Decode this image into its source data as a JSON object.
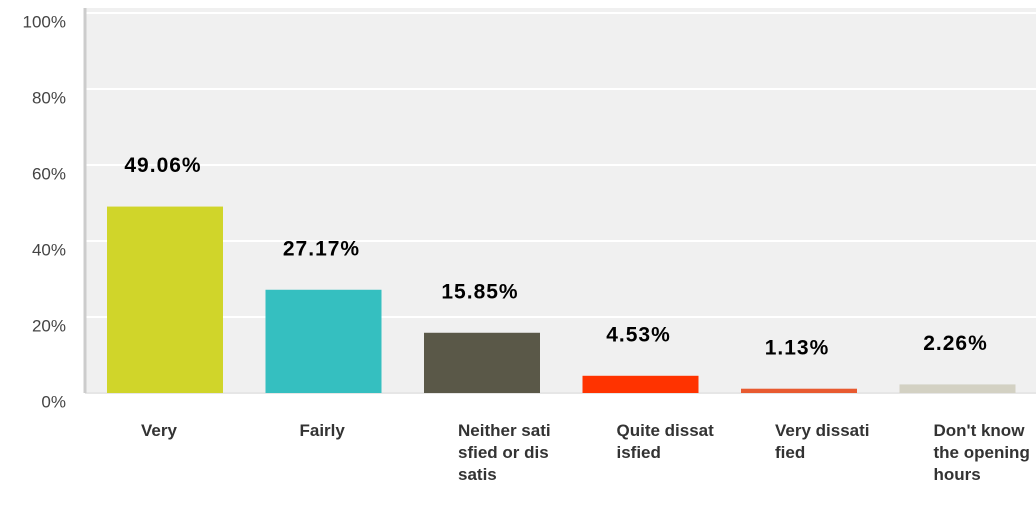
{
  "chart_data": {
    "type": "bar",
    "categories": [
      "Very",
      "Fairly",
      "Neither satisfied or dissatis",
      "Quite dissatisfied",
      "Very dissatified",
      "Don't know the opening hours"
    ],
    "values": [
      49.06,
      27.17,
      15.85,
      4.53,
      1.13,
      2.26
    ],
    "value_labels": [
      "49.06%",
      "27.17%",
      "15.85%",
      "4.53%",
      "1.13%",
      "2.26%"
    ],
    "colors": [
      "#d0d52a",
      "#35bfc0",
      "#5a5848",
      "#ff3300",
      "#e85a30",
      "#d3d1c3"
    ],
    "ylim": [
      0,
      100
    ],
    "yticks": [
      {
        "value": 0,
        "label": "0%"
      },
      {
        "value": 20,
        "label": "20%"
      },
      {
        "value": 40,
        "label": "40%"
      },
      {
        "value": 60,
        "label": "60%"
      },
      {
        "value": 80,
        "label": "80%"
      },
      {
        "value": 100,
        "label": "100%"
      }
    ],
    "grid": true
  }
}
